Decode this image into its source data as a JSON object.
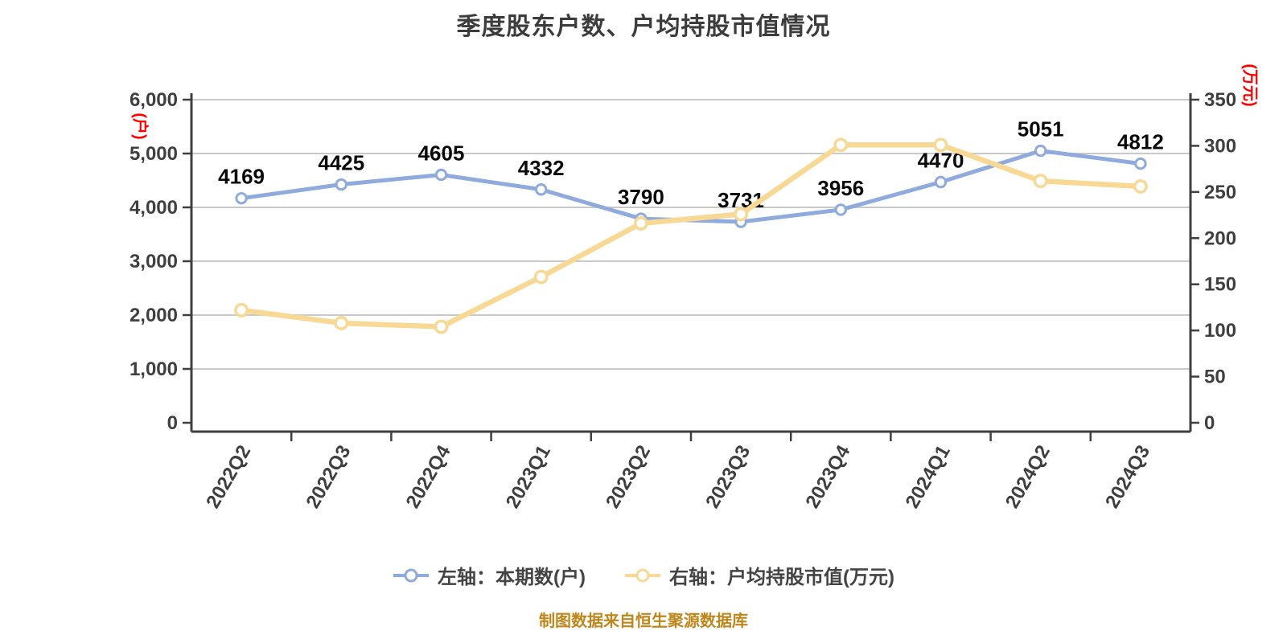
{
  "title": "季度股东户数、户均持股市值情况",
  "footer": "制图数据来自恒生聚源数据库",
  "left_axis_unit": "(户)",
  "right_axis_unit": "(万元)",
  "legend": [
    {
      "label": "左轴：本期数(户)",
      "color": "#8faadc"
    },
    {
      "label": "右轴：户均持股市值(万元)",
      "color": "#f7d894"
    }
  ],
  "colors": {
    "blue_series": "#8faadc",
    "yellow_series": "#f7d894",
    "marker_fill": "#ffffff",
    "grid": "#c9c9c9",
    "axis": "#3f3f3f",
    "tick_text": "#3f3f3f",
    "data_label": "#0a0a0a",
    "unit_red": "#ff0000",
    "footer_text": "#bf861b",
    "title_text": "#3c3c3c"
  },
  "chart_data": {
    "type": "line",
    "title": "季度股东户数、户均持股市值情况",
    "categories": [
      "2022Q2",
      "2022Q3",
      "2022Q4",
      "2023Q1",
      "2023Q2",
      "2023Q3",
      "2023Q4",
      "2024Q1",
      "2024Q2",
      "2024Q3"
    ],
    "series": [
      {
        "name": "左轴：本期数(户)",
        "axis": "left",
        "color": "#8faadc",
        "values": [
          4169,
          4425,
          4605,
          4332,
          3790,
          3731,
          3956,
          4470,
          5051,
          4812
        ],
        "labels_visible": true
      },
      {
        "name": "右轴：户均持股市值(万元)",
        "axis": "right",
        "color": "#f7d894",
        "values": [
          122,
          108,
          104,
          158,
          216,
          226,
          301,
          301,
          262,
          256
        ],
        "labels_visible": false
      }
    ],
    "left_axis": {
      "min": 0,
      "max": 6000,
      "step": 1000,
      "unit": "(户)"
    },
    "right_axis": {
      "min": 0,
      "max": 350,
      "step": 50,
      "unit": "(万元)"
    },
    "grid": true,
    "legend_position": "bottom"
  }
}
